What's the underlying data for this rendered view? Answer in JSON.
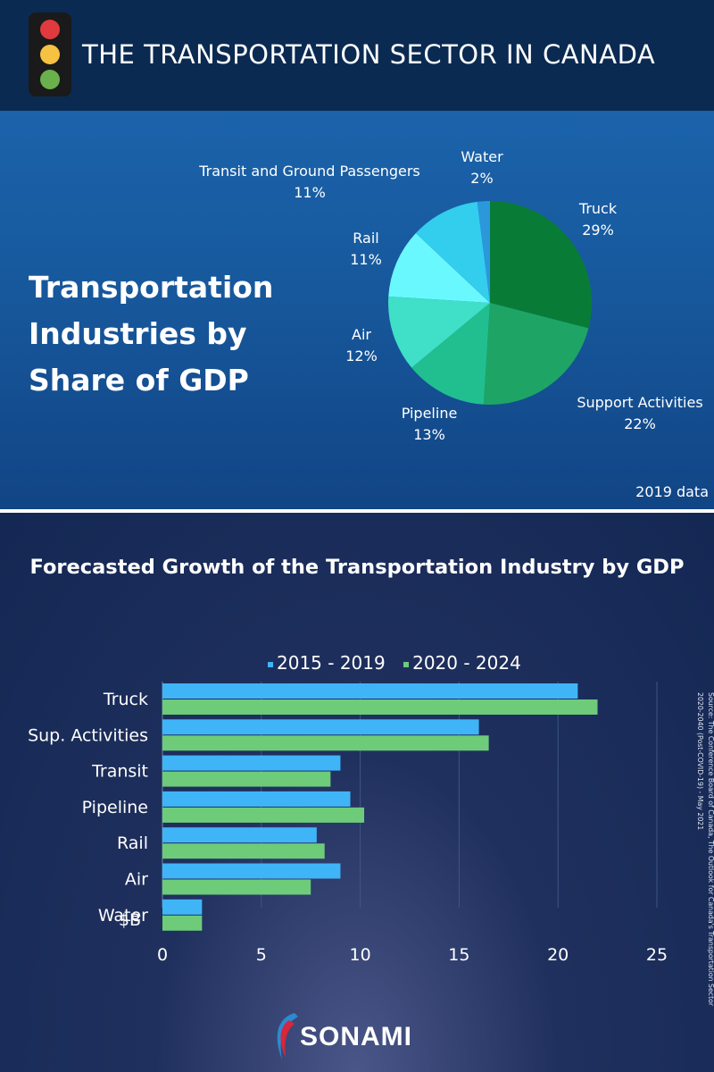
{
  "header": {
    "title": "THE TRANSPORTATION SECTOR IN CANADA",
    "traffic_light_colors": [
      "#e03a3e",
      "#f5c242",
      "#6ab04c"
    ]
  },
  "pie_section": {
    "heading_lines": [
      "Transportation",
      "Industries by",
      "Share of GDP"
    ],
    "year_note": "2019 data"
  },
  "bar_section": {
    "title": "Forecasted Growth of the Transportation Industry by GDP",
    "axis_unit_label": "$B"
  },
  "source": {
    "lines": [
      "Source: The Conference Board of Canada, The Outlook for Canada's Transportation Sector",
      "2020-2040 (Post-COVID-19) - May 2021"
    ]
  },
  "logo": {
    "text": "SONAMI"
  },
  "colors": {
    "series_2015": "#3fb5f7",
    "series_2020": "#6dcb7a",
    "pie": [
      "#087c37",
      "#1ea565",
      "#21bf8f",
      "#40dfc8",
      "#6af8ff",
      "#33cdee",
      "#2c98dc"
    ]
  },
  "chart_data": [
    {
      "type": "pie",
      "title": "Transportation Industries by Share of GDP",
      "note": "2019 data",
      "labels": [
        "Truck",
        "Support Activities",
        "Pipeline",
        "Air",
        "Rail",
        "Transit and Ground Passengers",
        "Water"
      ],
      "values": [
        29,
        22,
        13,
        12,
        11,
        11,
        2
      ],
      "value_labels": [
        "29%",
        "22%",
        "13%",
        "12%",
        "11%",
        "11%",
        "2%"
      ]
    },
    {
      "type": "bar",
      "orientation": "horizontal",
      "title": "Forecasted Growth of the Transportation Industry by GDP",
      "categories": [
        "Truck",
        "Sup. Activities",
        "Transit",
        "Pipeline",
        "Rail",
        "Air",
        "Water"
      ],
      "series": [
        {
          "name": "2015 - 2019",
          "values": [
            21,
            16,
            9,
            9.5,
            7.8,
            9,
            2
          ]
        },
        {
          "name": "2020 - 2024",
          "values": [
            22,
            16.5,
            8.5,
            10.2,
            8.2,
            7.5,
            2
          ]
        }
      ],
      "xlim": [
        0,
        25
      ],
      "xticks": [
        0,
        5,
        10,
        15,
        20,
        25
      ],
      "xlabel": "$B",
      "grid": true,
      "legend": "top"
    }
  ]
}
